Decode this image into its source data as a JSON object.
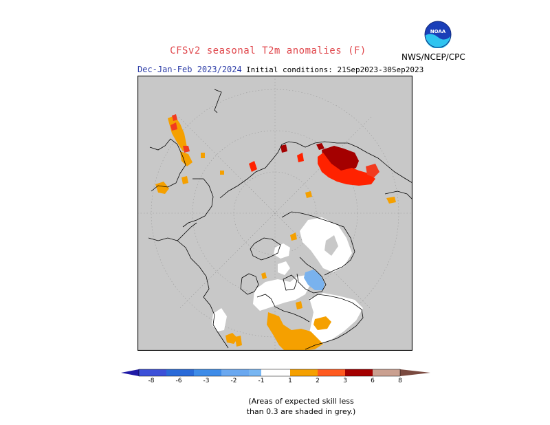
{
  "title": "CFSv2 seasonal T2m anomalies (F)",
  "season": "Dec-Jan-Feb 2023/2024",
  "initial_conditions": "Initial conditions: 21Sep2023-30Sep2023",
  "agency": "NWS/NCEP/CPC",
  "logo_text": "NOAA",
  "note_line1": "(Areas of expected skill less",
  "note_line2": "than 0.3 are shaded in grey.)",
  "colors": {
    "grey": "#c8c8c8",
    "white": "#ffffff",
    "cold_light_blue": "#79b2ee",
    "cold_blue": "#4f94e8",
    "orange": "#f5a000",
    "red_orange": "#f23b1f",
    "red": "#ff2200",
    "dark_red": "#a40000"
  },
  "colorbar": {
    "labels": [
      "-8",
      "-6",
      "-3",
      "-2",
      "-1",
      "1",
      "2",
      "3",
      "6",
      "8"
    ],
    "colors": [
      "#1f1aa6",
      "#3c50d8",
      "#2a6ad8",
      "#3e8ce8",
      "#6aa8f0",
      "#78b6f2",
      "#ffffff",
      "#f5a000",
      "#ff5a20",
      "#ff2200",
      "#a40000",
      "#caa090",
      "#7a4a40"
    ]
  }
}
